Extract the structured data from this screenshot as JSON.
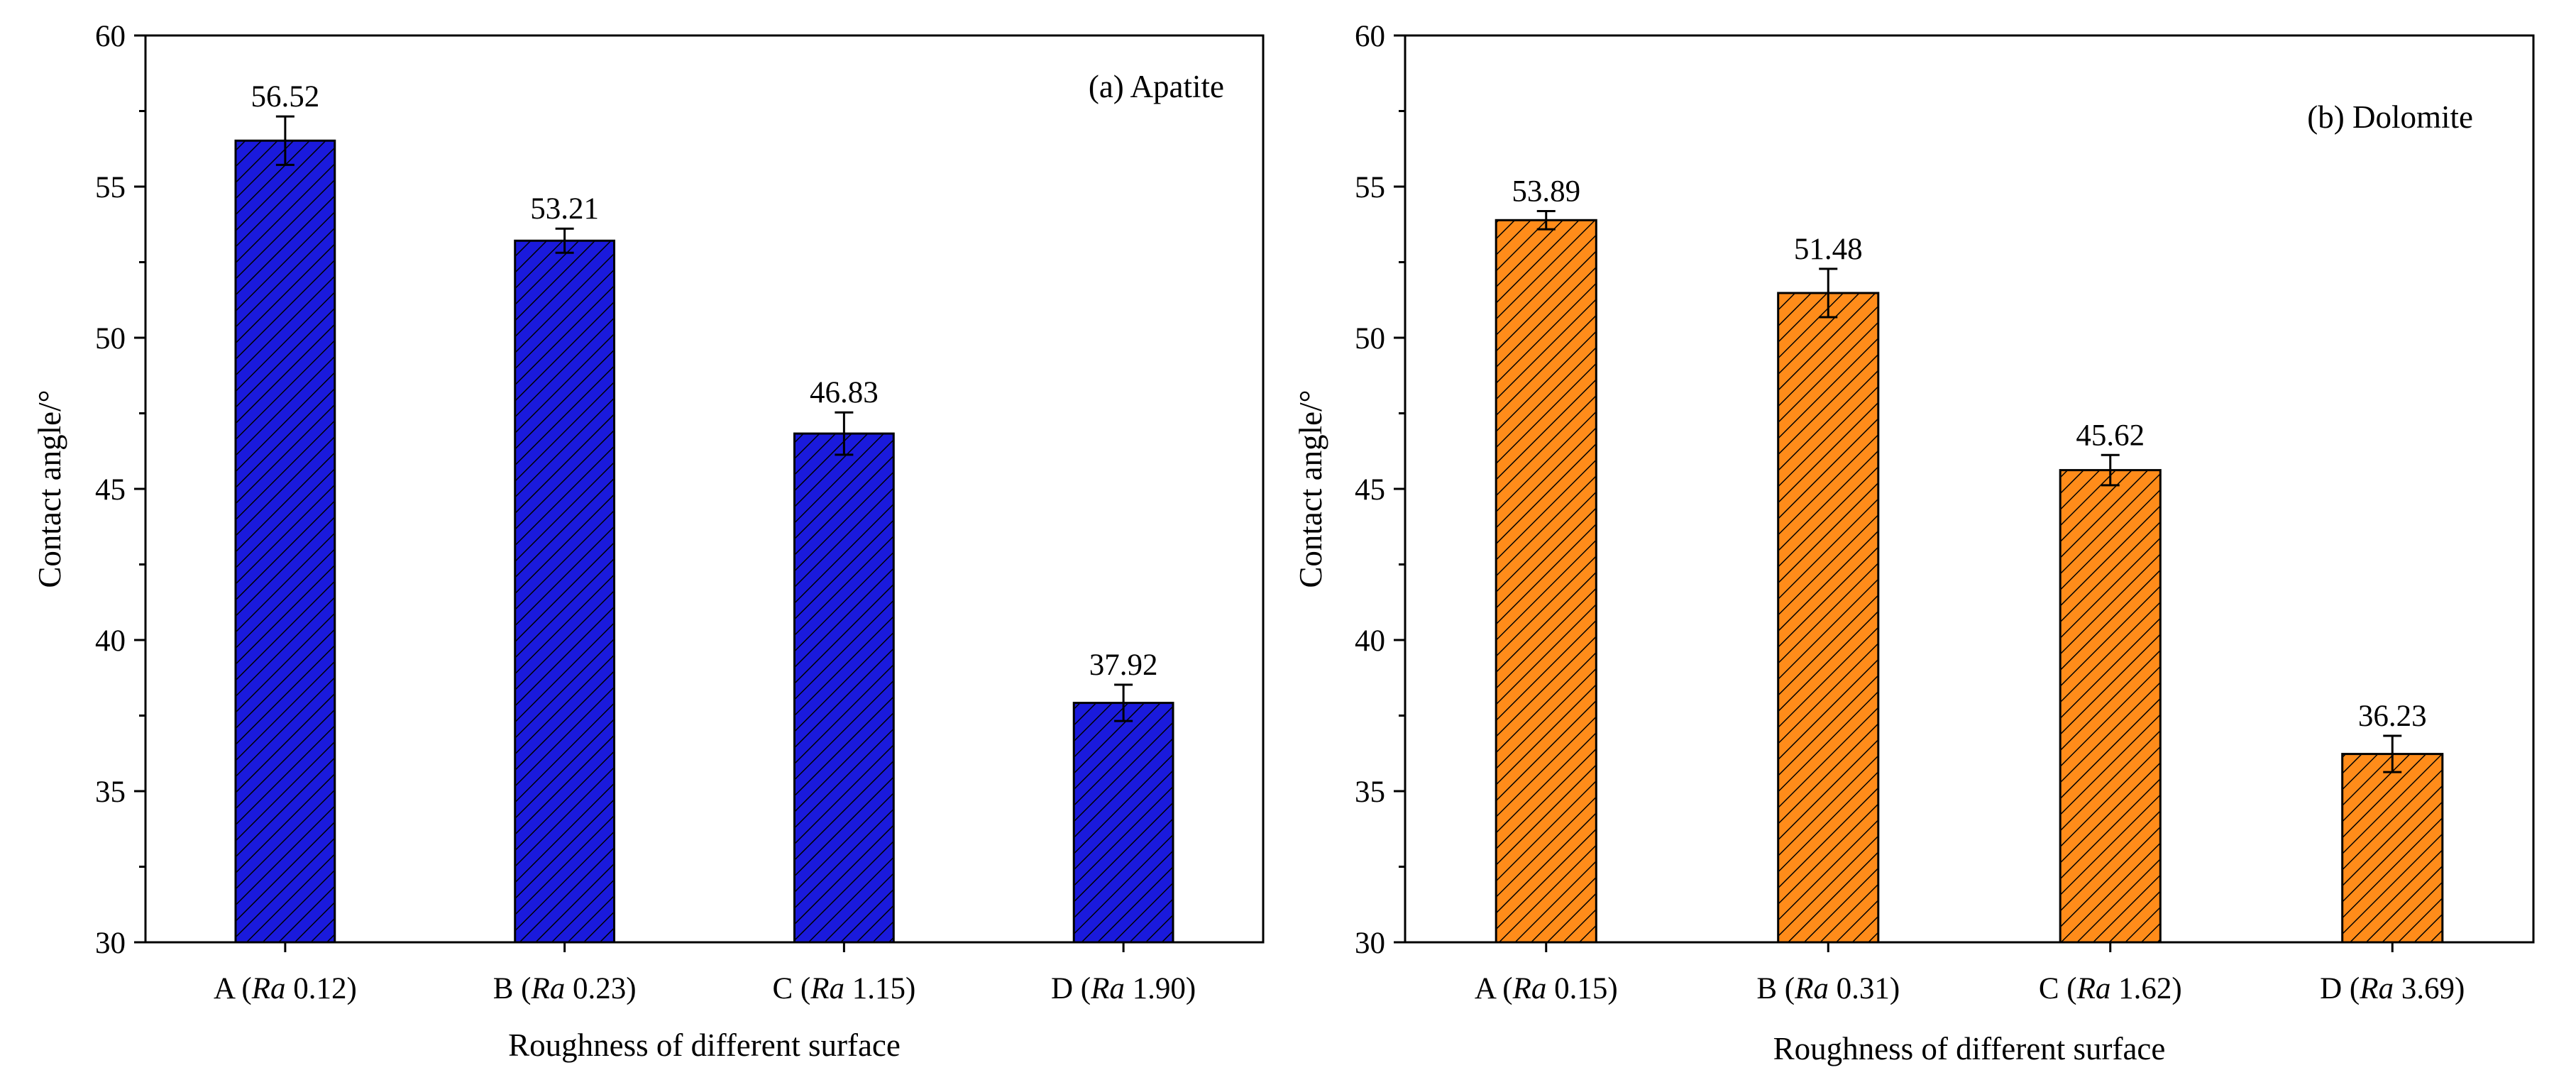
{
  "chart_data": [
    {
      "type": "bar",
      "title": "(a) Apatite",
      "categories": [
        {
          "prefix": "A (",
          "ra": "Ra",
          "value_text": " 0.12)"
        },
        {
          "prefix": "B (",
          "ra": "Ra",
          "value_text": " 0.23)"
        },
        {
          "prefix": "C (",
          "ra": "Ra",
          "value_text": " 1.15)"
        },
        {
          "prefix": "D (",
          "ra": "Ra",
          "value_text": " 1.90)"
        }
      ],
      "values": [
        56.52,
        53.21,
        46.83,
        37.92
      ],
      "value_labels": [
        "56.52",
        "53.21",
        "46.83",
        "37.92"
      ],
      "errors": [
        0.8,
        0.4,
        0.7,
        0.6
      ],
      "xlabel": "Roughness of different surface",
      "ylabel": "Contact angle/°",
      "ylim": [
        30,
        60
      ],
      "yticks": [
        30,
        35,
        40,
        45,
        50,
        55,
        60
      ],
      "bar_color": "#1a1adc",
      "hatch": "diagonal"
    },
    {
      "type": "bar",
      "title": "(b) Dolomite",
      "categories": [
        {
          "prefix": "A (",
          "ra": "Ra",
          "value_text": " 0.15)"
        },
        {
          "prefix": "B (",
          "ra": "Ra",
          "value_text": " 0.31)"
        },
        {
          "prefix": "C (",
          "ra": "Ra",
          "value_text": " 1.62)"
        },
        {
          "prefix": "D (",
          "ra": "Ra",
          "value_text": " 3.69)"
        }
      ],
      "values": [
        53.89,
        51.48,
        45.62,
        36.23
      ],
      "value_labels": [
        "53.89",
        "51.48",
        "45.62",
        "36.23"
      ],
      "errors": [
        0.3,
        0.8,
        0.5,
        0.6
      ],
      "xlabel": "Roughness of different surface",
      "ylabel": "Contact angle/°",
      "ylim": [
        30,
        60
      ],
      "yticks": [
        30,
        35,
        40,
        45,
        50,
        55,
        60
      ],
      "bar_color": "#ff8c1a",
      "hatch": "diagonal"
    }
  ]
}
